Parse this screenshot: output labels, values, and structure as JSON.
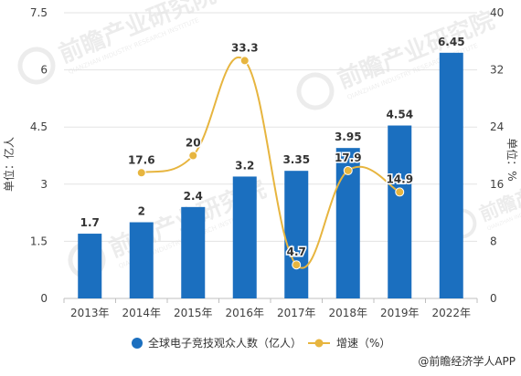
{
  "chart_data": {
    "type": "bar+line",
    "categories": [
      "2013年",
      "2014年",
      "2015年",
      "2016年",
      "2017年",
      "2018年",
      "2019年",
      "2022年"
    ],
    "series": [
      {
        "name": "全球电子竞技观众人数（亿人）",
        "type": "bar",
        "axis": "left",
        "values": [
          1.7,
          2,
          2.4,
          3.2,
          3.35,
          3.95,
          4.54,
          6.45
        ],
        "labels": [
          "1.7",
          "2",
          "2.4",
          "3.2",
          "3.35",
          "3.95",
          "4.54",
          "6.45"
        ]
      },
      {
        "name": "增速（%）",
        "type": "line",
        "axis": "right",
        "values": [
          null,
          17.6,
          20,
          33.3,
          4.7,
          17.9,
          14.9,
          null
        ],
        "labels": [
          "",
          "17.6",
          "20",
          "33.3",
          "4.7",
          "17.9",
          "14.9",
          ""
        ]
      }
    ],
    "ylabel_left": "单位：亿人",
    "ylabel_right": "单位：%",
    "ylim_left": [
      0,
      7.5
    ],
    "ylim_right": [
      0,
      40
    ],
    "yticks_left": [
      "0",
      "1.5",
      "3",
      "4.5",
      "6",
      "7.5"
    ],
    "yticks_right": [
      "0",
      "8",
      "16",
      "24",
      "32",
      "40"
    ],
    "grid": true,
    "legend_position": "bottom",
    "colors": {
      "bar": "#1B6FBF",
      "line": "#E7B53F",
      "axis_text": "#404040",
      "grid": "#e3e3e3"
    }
  },
  "legend": {
    "bar_label": "全球电子竞技观众人数（亿人）",
    "line_label": "增速（%）"
  },
  "watermark": {
    "brand": "前瞻产业研究院",
    "brand_sub": "QIANZHAN INDUSTRY RESEARCH INSTITUTE"
  },
  "footer": {
    "source": "@前瞻经济学人APP"
  }
}
